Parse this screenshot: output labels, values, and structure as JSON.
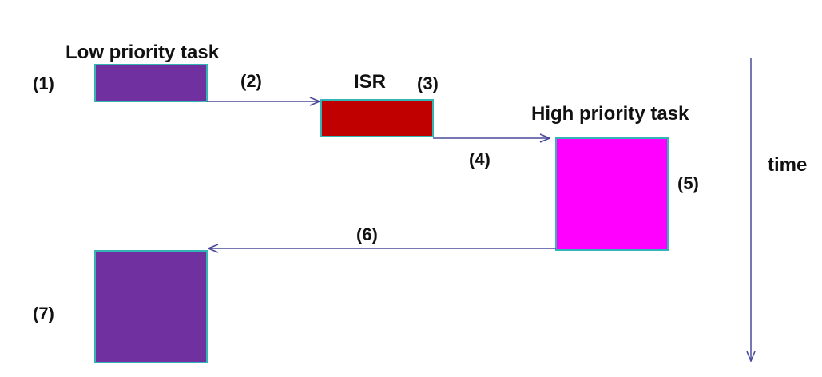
{
  "diagram": {
    "tasks": {
      "low": {
        "label": "Low priority task",
        "color": "#7030A0"
      },
      "isr": {
        "label": "ISR",
        "color": "#C00000"
      },
      "high": {
        "label": "High priority task",
        "color": "#FF00FF"
      },
      "resumed": {
        "color": "#7030A0"
      }
    },
    "steps": {
      "s1": "(1)",
      "s2": "(2)",
      "s3": "(3)",
      "s4": "(4)",
      "s5": "(5)",
      "s6": "(6)",
      "s7": "(7)"
    },
    "axis": {
      "label": "time"
    },
    "colors": {
      "border": "#33B5B5",
      "arrow": "#4A4A9A"
    }
  }
}
